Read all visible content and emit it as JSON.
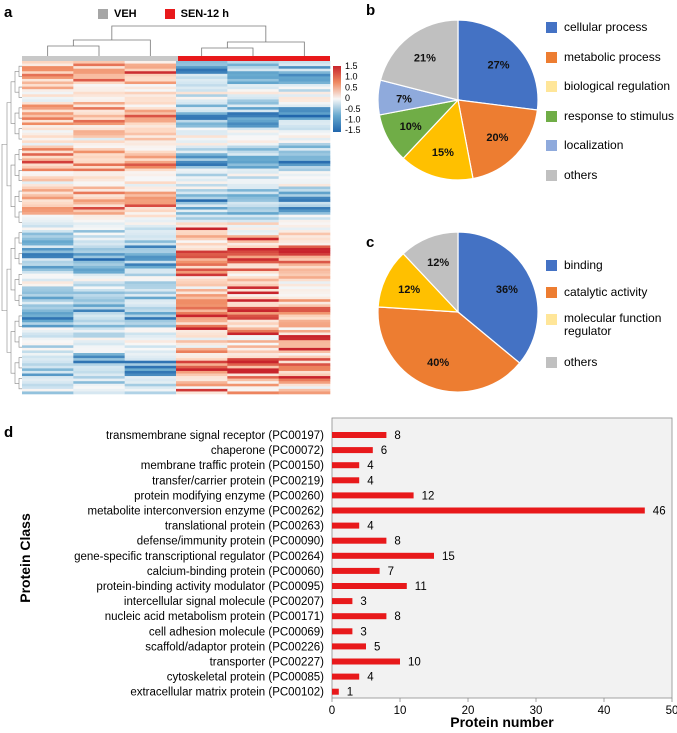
{
  "panels": {
    "a": "a",
    "b": "b",
    "c": "c",
    "d": "d"
  },
  "heatmap_legend": [
    {
      "label": "VEH",
      "color": "#a6a6a6"
    },
    {
      "label": "SEN-12 h",
      "color": "#e8191b"
    }
  ],
  "heatmap_scale": [
    "1.5",
    "1.0",
    "0.5",
    "0",
    "-0.5",
    "-1.0",
    "-1.5"
  ],
  "chart_data": [
    {
      "type": "pie",
      "panel": "b",
      "labels": [
        "cellular process",
        "metabolic process",
        "biological regulation",
        "response to stimulus",
        "localization",
        "others"
      ],
      "values": [
        27,
        20,
        15,
        10,
        7,
        21
      ],
      "value_labels": [
        "27%",
        "20%",
        "15%",
        "10%",
        "7%",
        "21%"
      ],
      "colors": [
        "#4472c4",
        "#ed7d31",
        "#ffc000",
        "#70ad47",
        "#8faadc",
        "#c0c0c0"
      ],
      "legend_colors": [
        "#4472c4",
        "#ed7d31",
        "#ffe699",
        "#70ad47",
        "#8faadc",
        "#c0c0c0"
      ]
    },
    {
      "type": "pie",
      "panel": "c",
      "labels": [
        "binding",
        "catalytic activity",
        "molecular function regulator",
        "others"
      ],
      "values": [
        36,
        40,
        12,
        12
      ],
      "value_labels": [
        "36%",
        "40%",
        "12%",
        "12%"
      ],
      "colors": [
        "#4472c4",
        "#ed7d31",
        "#ffc000",
        "#c0c0c0"
      ],
      "legend_colors": [
        "#4472c4",
        "#ed7d31",
        "#ffe699",
        "#c0c0c0"
      ]
    },
    {
      "type": "bar",
      "panel": "d",
      "orientation": "horizontal",
      "categories": [
        "transmembrane signal receptor (PC00197)",
        "chaperone (PC00072)",
        "membrane traffic protein (PC00150)",
        "transfer/carrier protein (PC00219)",
        "protein modifying enzyme (PC00260)",
        "metabolite interconversion enzyme (PC00262)",
        "translational protein (PC00263)",
        "defense/immunity protein (PC00090)",
        "gene-specific transcriptional regulator (PC00264)",
        "calcium-binding protein (PC00060)",
        "protein-binding activity modulator (PC00095)",
        "intercellular signal molecule (PC00207)",
        "nucleic acid metabolism protein (PC00171)",
        "cell adhesion molecule (PC00069)",
        "scaffold/adaptor protein (PC00226)",
        "transporter (PC00227)",
        "cytoskeletal protein (PC00085)",
        "extracellular matrix protein (PC00102)"
      ],
      "values": [
        8,
        6,
        4,
        4,
        12,
        46,
        4,
        8,
        15,
        7,
        11,
        3,
        8,
        3,
        5,
        10,
        4,
        1
      ],
      "xlabel": "Protein number",
      "ylabel": "Protein  Class",
      "xlim": [
        0,
        50
      ],
      "xticks": [
        "0",
        "10",
        "20",
        "30",
        "40",
        "50"
      ],
      "color": "#e8191b",
      "background": "#f2f2f2"
    }
  ]
}
